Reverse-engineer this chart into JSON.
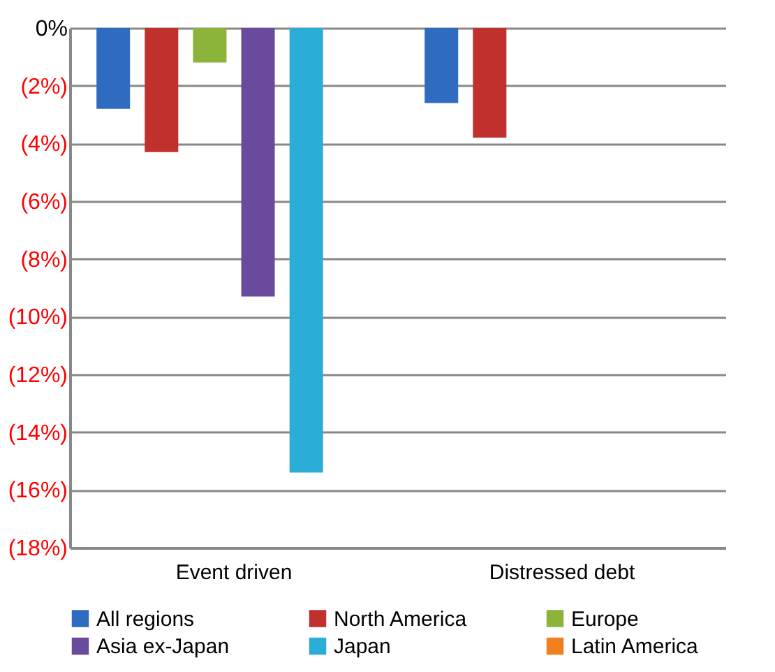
{
  "chart_data": {
    "type": "bar",
    "categories": [
      "Event driven",
      "Distressed debt"
    ],
    "series": [
      {
        "name": "All regions",
        "color": "#2f6bbf",
        "values": [
          -2.8,
          -2.6
        ]
      },
      {
        "name": "North America",
        "color": "#c0302c",
        "values": [
          -4.3,
          -3.8
        ]
      },
      {
        "name": "Europe",
        "color": "#8cb33a",
        "values": [
          -1.2,
          0
        ]
      },
      {
        "name": "Asia ex-Japan",
        "color": "#6a4a9c",
        "values": [
          -9.3,
          0
        ]
      },
      {
        "name": "Japan",
        "color": "#2aaed8",
        "values": [
          -15.4,
          0
        ]
      },
      {
        "name": "Latin America",
        "color": "#f07f1e",
        "values": [
          0,
          0
        ]
      }
    ],
    "ylim": [
      -18,
      0
    ],
    "yticks": [
      {
        "value": -18,
        "label": "(18%)"
      },
      {
        "value": -16,
        "label": "(16%)"
      },
      {
        "value": -14,
        "label": "(14%)"
      },
      {
        "value": -12,
        "label": "(12%)"
      },
      {
        "value": -10,
        "label": "(10%)"
      },
      {
        "value": -8,
        "label": "(8%)"
      },
      {
        "value": -6,
        "label": "(6%)"
      },
      {
        "value": -4,
        "label": "(4%)"
      },
      {
        "value": -2,
        "label": "(2%)"
      },
      {
        "value": 0,
        "label": "0%"
      }
    ],
    "grid": "y",
    "legend": "bottom"
  }
}
